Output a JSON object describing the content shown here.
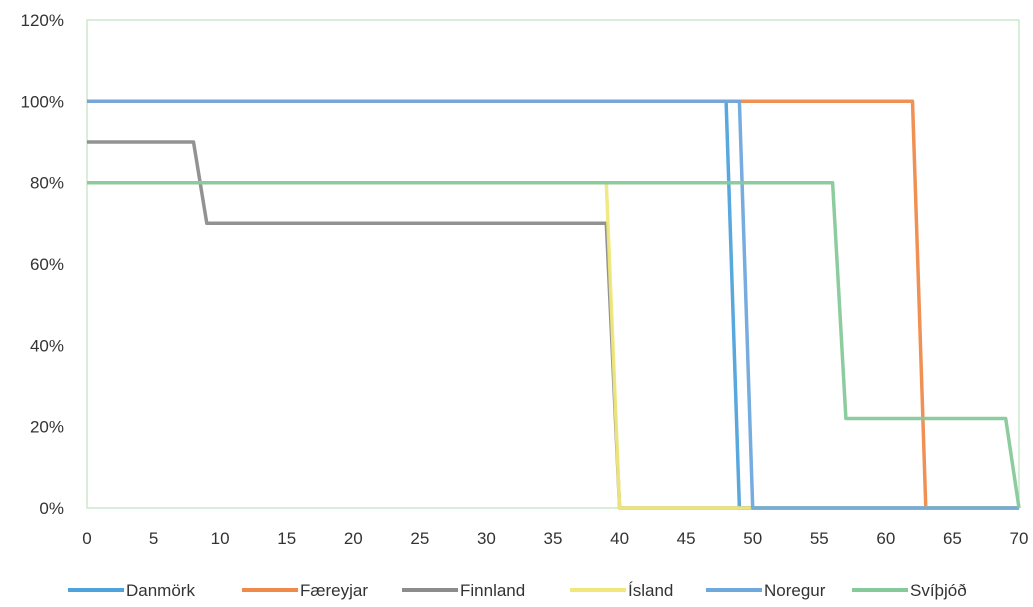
{
  "chart_data": {
    "type": "line",
    "title": "",
    "xlabel": "",
    "ylabel": "",
    "xlim": [
      0,
      70
    ],
    "ylim": [
      0,
      1.2
    ],
    "x_ticks": [
      "0",
      "5",
      "10",
      "15",
      "20",
      "25",
      "30",
      "35",
      "40",
      "45",
      "50",
      "55",
      "60",
      "65",
      "70"
    ],
    "y_ticks": [
      "0%",
      "20%",
      "40%",
      "60%",
      "80%",
      "100%",
      "120%"
    ],
    "grid": false,
    "legend_position": "bottom",
    "series": [
      {
        "name": "Danmörk",
        "color": "#4fa3dc",
        "points": [
          [
            0,
            1.0
          ],
          [
            48,
            1.0
          ],
          [
            49,
            0
          ],
          [
            70,
            0
          ]
        ]
      },
      {
        "name": "Færeyjar",
        "color": "#f08a4b",
        "points": [
          [
            0,
            1.0
          ],
          [
            62,
            1.0
          ],
          [
            63,
            0
          ],
          [
            70,
            0
          ]
        ]
      },
      {
        "name": "Finnland",
        "color": "#8c8c8c",
        "points": [
          [
            0,
            0.9
          ],
          [
            8,
            0.9
          ],
          [
            9,
            0.7
          ],
          [
            39,
            0.7
          ],
          [
            40,
            0
          ],
          [
            70,
            0
          ]
        ]
      },
      {
        "name": "Ísland",
        "color": "#f0e87a",
        "points": [
          [
            0,
            0.8
          ],
          [
            39,
            0.8
          ],
          [
            40,
            0
          ],
          [
            70,
            0
          ]
        ]
      },
      {
        "name": "Noregur",
        "color": "#6fa8dc",
        "points": [
          [
            0,
            1.0
          ],
          [
            49,
            1.0
          ],
          [
            50,
            0
          ],
          [
            70,
            0
          ]
        ]
      },
      {
        "name": "Svíþjóð",
        "color": "#86c99a",
        "points": [
          [
            0,
            0.8
          ],
          [
            56,
            0.8
          ],
          [
            57,
            0.22
          ],
          [
            69,
            0.22
          ],
          [
            70,
            0
          ]
        ]
      }
    ]
  }
}
